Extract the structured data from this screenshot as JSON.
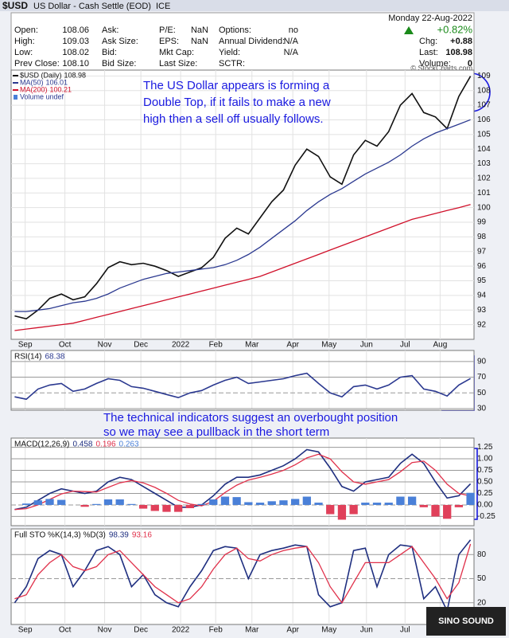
{
  "header": {
    "title": "$USD",
    "name": "US Dollar - Cash Settle (EOD)",
    "exchange": "ICE",
    "date": "Monday 22-Aug-2022",
    "fields": [
      {
        "label": "Open:",
        "value": "108.06"
      },
      {
        "label": "High:",
        "value": "109.03"
      },
      {
        "label": "Low:",
        "value": "108.02"
      },
      {
        "label": "Prev Close:",
        "value": "108.10"
      },
      {
        "label": "Ask:"
      },
      {
        "label": "Ask Size:"
      },
      {
        "label": "Bid:"
      },
      {
        "label": "Bid Size:"
      },
      {
        "label": "P/E:",
        "value": "NaN"
      },
      {
        "label": "EPS:",
        "value": "NaN"
      },
      {
        "label": "Mkt Cap:"
      },
      {
        "label": "Last Size:"
      },
      {
        "label": "Options:",
        "value": "no"
      },
      {
        "label": "Annual Dividend:",
        "value": "N/A"
      },
      {
        "label": "Yield:",
        "value": "N/A"
      },
      {
        "label": "SCTR:"
      }
    ],
    "change_pct": "+0.82%",
    "right_fields": [
      {
        "label": "Chg:",
        "value": "+0.88"
      },
      {
        "label": "Last:",
        "value": "108.98"
      },
      {
        "label": "Volume:",
        "value": "0"
      }
    ],
    "watermark": "© StockCharts.com",
    "logo": "SINO SOUND"
  },
  "chart_data": [
    {
      "type": "line",
      "legend_layout": "column",
      "legend_extra": "Volume undef",
      "annotation": [
        "The US Dollar appears is forming a",
        "Double Top, if it fails to make a new",
        "high then a sell off usually follows."
      ],
      "xlim": [
        -0.3,
        39.3
      ],
      "xticks": [
        {
          "value": 0.9,
          "label": "Sep"
        },
        {
          "value": 4.3,
          "label": "Oct"
        },
        {
          "value": 7.7,
          "label": "Nov"
        },
        {
          "value": 10.8,
          "label": "Dec"
        },
        {
          "value": 14.2,
          "label": "2022"
        },
        {
          "value": 17.2,
          "label": "Feb"
        },
        {
          "value": 20.3,
          "label": "Mar"
        },
        {
          "value": 23.8,
          "label": "Apr"
        },
        {
          "value": 26.9,
          "label": "May"
        },
        {
          "value": 30.1,
          "label": "Jun"
        },
        {
          "value": 33.4,
          "label": "Jul"
        },
        {
          "value": 36.4,
          "label": "Aug"
        }
      ],
      "ylim": [
        91,
        109.4
      ],
      "yticks": [
        92,
        93,
        94,
        95,
        96,
        97,
        98,
        99,
        100,
        101,
        102,
        103,
        104,
        105,
        106,
        107,
        108,
        109
      ],
      "grid": true,
      "series": [
        {
          "name": "$USD (Daily)",
          "color": "#111111",
          "values": [
            92.6,
            92.4,
            93.0,
            93.8,
            94.1,
            93.7,
            93.9,
            94.8,
            95.9,
            96.3,
            96.1,
            96.2,
            96.0,
            95.7,
            95.3,
            95.6,
            95.9,
            96.6,
            97.9,
            98.6,
            98.2,
            99.3,
            100.4,
            101.2,
            102.9,
            104.0,
            103.5,
            102.1,
            101.6,
            103.6,
            104.6,
            104.2,
            105.2,
            107.0,
            107.8,
            106.5,
            106.2,
            105.4,
            107.6,
            108.98
          ]
        },
        {
          "name": "MA(50)",
          "color": "#2b3990",
          "values": [
            92.9,
            92.9,
            93.0,
            93.1,
            93.3,
            93.5,
            93.6,
            93.8,
            94.1,
            94.5,
            94.8,
            95.1,
            95.3,
            95.5,
            95.6,
            95.7,
            95.8,
            95.9,
            96.1,
            96.4,
            96.8,
            97.3,
            97.9,
            98.5,
            99.1,
            99.8,
            100.4,
            100.9,
            101.3,
            101.8,
            102.3,
            102.7,
            103.1,
            103.6,
            104.2,
            104.7,
            105.1,
            105.4,
            105.7,
            106.01
          ]
        },
        {
          "name": "MA(200)",
          "color": "#d0102a",
          "values": [
            91.6,
            91.7,
            91.8,
            91.9,
            92.0,
            92.1,
            92.3,
            92.5,
            92.7,
            92.9,
            93.1,
            93.3,
            93.5,
            93.7,
            93.9,
            94.1,
            94.3,
            94.5,
            94.7,
            94.9,
            95.1,
            95.3,
            95.6,
            95.9,
            96.2,
            96.5,
            96.8,
            97.1,
            97.4,
            97.7,
            98.0,
            98.3,
            98.6,
            98.9,
            99.2,
            99.4,
            99.6,
            99.8,
            100.0,
            100.21
          ]
        }
      ]
    },
    {
      "type": "line",
      "title": "RSI(14)",
      "xlim": [
        -0.3,
        39.3
      ],
      "ylim": [
        28,
        104
      ],
      "yticks": [
        30,
        50,
        70,
        90
      ],
      "grid": true,
      "series": [
        {
          "color": "#2b3990",
          "values": [
            45,
            42,
            55,
            60,
            62,
            52,
            55,
            62,
            68,
            66,
            58,
            56,
            52,
            48,
            44,
            50,
            53,
            60,
            66,
            70,
            62,
            64,
            66,
            68,
            72,
            75,
            62,
            50,
            45,
            58,
            60,
            55,
            60,
            70,
            72,
            55,
            52,
            46,
            60,
            68.38
          ]
        }
      ]
    },
    {
      "type": "line",
      "title": "MACD(12,26,9)",
      "annotation": [
        "The technical indicators suggest an overbought position",
        "so we may see a pullback in the short term"
      ],
      "xlim": [
        -0.3,
        39.3
      ],
      "ylim": [
        -0.45,
        1.45
      ],
      "yticks": [
        1.25,
        {
          "value": 1,
          "label": "1.00"
        },
        0.75,
        {
          "value": 0.5,
          "label": "0.50"
        },
        0.25,
        {
          "value": 0,
          "label": "0.00"
        },
        -0.25
      ],
      "grid": true,
      "series": [
        {
          "color": "#1f2f80",
          "values": [
            -0.1,
            -0.05,
            0.1,
            0.25,
            0.35,
            0.3,
            0.25,
            0.3,
            0.5,
            0.6,
            0.55,
            0.4,
            0.25,
            0.1,
            -0.05,
            -0.05,
            0.0,
            0.2,
            0.45,
            0.6,
            0.6,
            0.65,
            0.75,
            0.85,
            1.0,
            1.2,
            1.15,
            0.8,
            0.4,
            0.3,
            0.5,
            0.55,
            0.6,
            0.9,
            1.1,
            0.9,
            0.5,
            0.15,
            0.2,
            0.458
          ]
        },
        {
          "color": "#e0304a",
          "values": [
            -0.1,
            -0.08,
            0.0,
            0.12,
            0.24,
            0.3,
            0.29,
            0.28,
            0.38,
            0.48,
            0.53,
            0.48,
            0.38,
            0.25,
            0.1,
            0.02,
            -0.02,
            0.08,
            0.27,
            0.43,
            0.54,
            0.6,
            0.67,
            0.75,
            0.87,
            1.02,
            1.1,
            1.0,
            0.72,
            0.5,
            0.45,
            0.5,
            0.55,
            0.72,
            0.92,
            0.95,
            0.75,
            0.45,
            0.25,
            0.196
          ]
        },
        {
          "style": "histogram",
          "color": "#4a80d8",
          "negative_color": "#e0405a",
          "values": [
            0,
            0.03,
            0.1,
            0.13,
            0.11,
            0,
            -0.04,
            0.02,
            0.12,
            0.12,
            0.02,
            -0.08,
            -0.13,
            -0.15,
            -0.15,
            -0.07,
            0.02,
            0.12,
            0.18,
            0.17,
            0.06,
            0.05,
            0.08,
            0.1,
            0.13,
            0.18,
            0.05,
            -0.2,
            -0.32,
            -0.2,
            0.05,
            0.05,
            0.05,
            0.18,
            0.18,
            -0.05,
            -0.25,
            -0.3,
            -0.05,
            0.263
          ]
        }
      ]
    },
    {
      "type": "line",
      "title": "Full STO %K(14,3) %D(3)",
      "xlim": [
        -0.3,
        39.3
      ],
      "xticks": [
        {
          "value": 0.9,
          "label": "Sep"
        },
        {
          "value": 4.3,
          "label": "Oct"
        },
        {
          "value": 7.7,
          "label": "Nov"
        },
        {
          "value": 10.8,
          "label": "Dec"
        },
        {
          "value": 14.2,
          "label": "2022"
        },
        {
          "value": 17.2,
          "label": "Feb"
        },
        {
          "value": 20.3,
          "label": "Mar"
        },
        {
          "value": 23.8,
          "label": "Apr"
        },
        {
          "value": 26.9,
          "label": "May"
        },
        {
          "value": 30.1,
          "label": "Jun"
        },
        {
          "value": 33.4,
          "label": "Jul"
        },
        {
          "value": 36.4,
          "label": "Aug"
        }
      ],
      "ylim": [
        -7,
        112
      ],
      "yticks": [
        20,
        50,
        80
      ],
      "grid": true,
      "series": [
        {
          "color": "#1f2f80",
          "values": [
            20,
            40,
            75,
            85,
            80,
            40,
            60,
            85,
            90,
            80,
            40,
            55,
            30,
            20,
            15,
            40,
            60,
            85,
            90,
            88,
            50,
            80,
            85,
            88,
            92,
            90,
            30,
            15,
            20,
            85,
            88,
            40,
            80,
            92,
            90,
            25,
            40,
            10,
            80,
            98.39
          ]
        },
        {
          "color": "#e0304a",
          "values": [
            25,
            30,
            55,
            70,
            80,
            65,
            60,
            65,
            80,
            85,
            70,
            55,
            40,
            30,
            20,
            25,
            40,
            62,
            80,
            88,
            75,
            72,
            80,
            85,
            88,
            90,
            70,
            40,
            20,
            45,
            70,
            70,
            70,
            80,
            90,
            70,
            50,
            25,
            45,
            93.16
          ]
        }
      ]
    }
  ]
}
